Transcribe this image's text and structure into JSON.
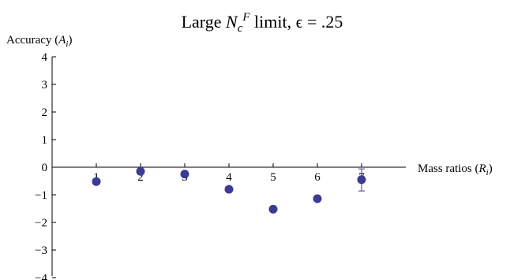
{
  "chart_data": {
    "type": "scatter",
    "title": {
      "prefix": "Large ",
      "N": "N",
      "sub": "c",
      "sup": "F",
      "suffix": " limit, ϵ = .25"
    },
    "ylabel": {
      "text": "Accuracy (",
      "var": "A",
      "sub": "i",
      "close": ")"
    },
    "xlabel": {
      "text": "Mass ratios (",
      "var": "R",
      "sub": "i",
      "close": ")"
    },
    "x_ticks": [
      1,
      2,
      3,
      4,
      5,
      6,
      7
    ],
    "x_tick_labels": [
      "1",
      "2",
      "3",
      "4",
      "5",
      "6",
      "7"
    ],
    "y_ticks": [
      4,
      3,
      2,
      1,
      0,
      -1,
      -2,
      -3,
      -4
    ],
    "y_tick_labels": [
      "4",
      "3",
      "2",
      "1",
      "0",
      "−1",
      "−2",
      "−3",
      "−4"
    ],
    "ylim": [
      -4,
      4
    ],
    "xlim": [
      0,
      8
    ],
    "grid": false,
    "marker_color": "#3b3b94",
    "series": [
      {
        "points": [
          {
            "x": 1,
            "y": -0.52
          },
          {
            "x": 2,
            "y": -0.15
          },
          {
            "x": 3,
            "y": -0.25
          },
          {
            "x": 4,
            "y": -0.8
          },
          {
            "x": 5,
            "y": -1.52
          },
          {
            "x": 6,
            "y": -1.14
          },
          {
            "x": 7,
            "y": -0.45,
            "err_low": -0.86,
            "err_high": -0.06
          }
        ]
      }
    ]
  }
}
